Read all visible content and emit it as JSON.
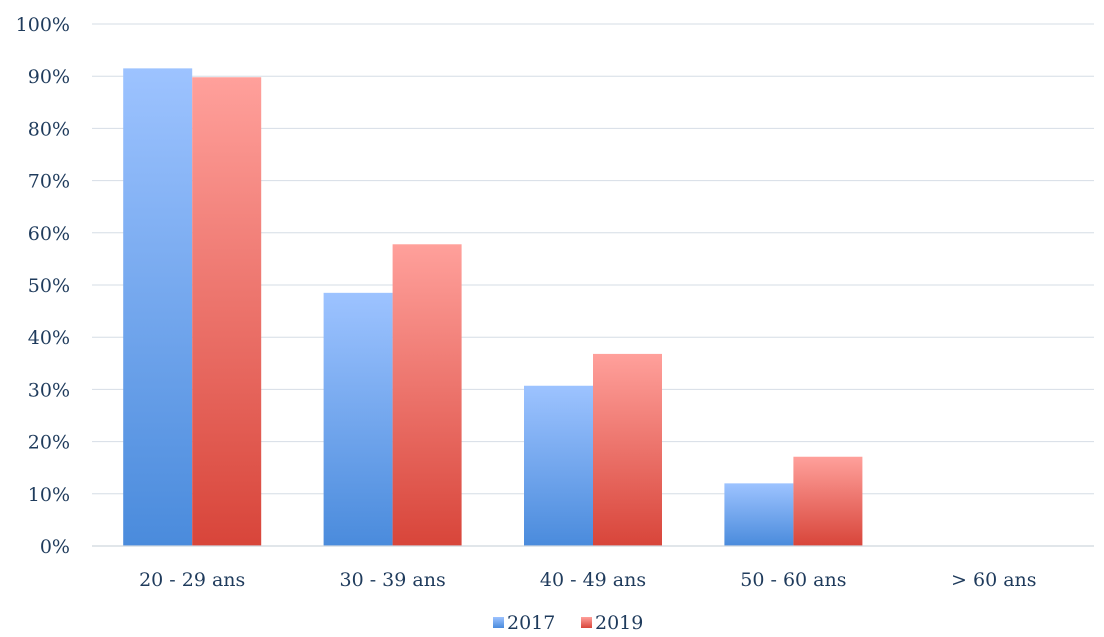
{
  "chart_data": {
    "type": "bar",
    "title": "",
    "xlabel": "",
    "ylabel": "",
    "ylim": [
      0,
      100
    ],
    "ytick_step": 10,
    "ytick_suffix": "%",
    "grid": true,
    "legend_position": "bottom-center",
    "categories": [
      "20 - 29 ans",
      "30 - 39 ans",
      "40 - 49 ans",
      "50 - 60 ans",
      "> 60 ans"
    ],
    "series": [
      {
        "name": "2017",
        "values": [
          91.5,
          48.5,
          30.7,
          12,
          0
        ],
        "color": "#4a8bdc",
        "color_light": "#9dc3ff"
      },
      {
        "name": "2019",
        "values": [
          89.8,
          57.8,
          36.8,
          17.1,
          0
        ],
        "color": "#d8453a",
        "color_light": "#ffa09b"
      }
    ]
  }
}
